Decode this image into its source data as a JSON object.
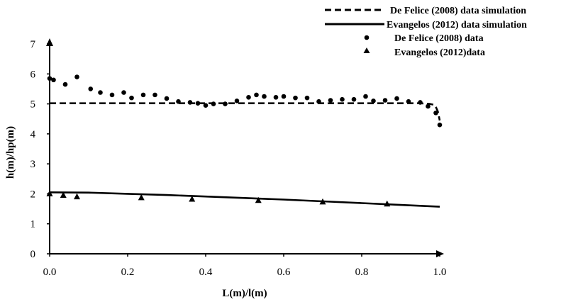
{
  "chart_data": {
    "type": "line",
    "title": "",
    "xlabel": "L(m)/l(m)",
    "ylabel": "h(m)/hp(m)",
    "xlim": [
      0,
      1.0
    ],
    "ylim": [
      0,
      7
    ],
    "xticks": [
      "0.0",
      "0.2",
      "0.4",
      "0.6",
      "0.8",
      "1.0"
    ],
    "yticks": [
      "0",
      "1",
      "2",
      "3",
      "4",
      "5",
      "6",
      "7"
    ],
    "grid": false,
    "legend_position": "top-right",
    "series": [
      {
        "name": "De Felice (2008) data simulation",
        "style": "dashed-line",
        "color": "#000000",
        "x": [
          0,
          0.2,
          0.4,
          0.6,
          0.8,
          0.9,
          0.95,
          0.975,
          0.985,
          0.99,
          0.995,
          1.0
        ],
        "y": [
          5.02,
          5.02,
          5.02,
          5.02,
          5.02,
          5.02,
          5.02,
          5.0,
          4.97,
          4.9,
          4.75,
          4.45
        ]
      },
      {
        "name": "Evangelos (2012) data simulation",
        "style": "solid-line",
        "color": "#000000",
        "x": [
          0,
          0.1,
          0.2,
          0.3,
          0.4,
          0.5,
          0.6,
          0.7,
          0.8,
          0.9,
          1.0
        ],
        "y": [
          2.05,
          2.04,
          2.0,
          1.96,
          1.91,
          1.86,
          1.81,
          1.75,
          1.69,
          1.63,
          1.57
        ]
      },
      {
        "name": "De Felice (2008) data",
        "style": "circle-markers",
        "color": "#000000",
        "x": [
          0.0,
          0.01,
          0.04,
          0.07,
          0.105,
          0.13,
          0.16,
          0.19,
          0.21,
          0.24,
          0.27,
          0.3,
          0.33,
          0.36,
          0.38,
          0.4,
          0.42,
          0.45,
          0.48,
          0.51,
          0.53,
          0.55,
          0.58,
          0.6,
          0.63,
          0.66,
          0.69,
          0.72,
          0.75,
          0.78,
          0.81,
          0.83,
          0.86,
          0.89,
          0.92,
          0.95,
          0.97,
          0.99,
          1.0
        ],
        "y": [
          5.85,
          5.8,
          5.65,
          5.9,
          5.5,
          5.38,
          5.3,
          5.38,
          5.2,
          5.3,
          5.3,
          5.18,
          5.08,
          5.05,
          5.02,
          4.95,
          5.0,
          5.0,
          5.1,
          5.22,
          5.3,
          5.25,
          5.22,
          5.25,
          5.2,
          5.2,
          5.08,
          5.12,
          5.15,
          5.15,
          5.25,
          5.1,
          5.12,
          5.18,
          5.08,
          5.05,
          4.92,
          4.7,
          4.3
        ]
      },
      {
        "name": "Evangelos (2012)data",
        "style": "triangle-markers",
        "color": "#000000",
        "x": [
          0.0,
          0.035,
          0.07,
          0.235,
          0.365,
          0.535,
          0.7,
          0.865
        ],
        "y": [
          2.0,
          1.95,
          1.9,
          1.87,
          1.82,
          1.78,
          1.73,
          1.66
        ]
      }
    ]
  }
}
